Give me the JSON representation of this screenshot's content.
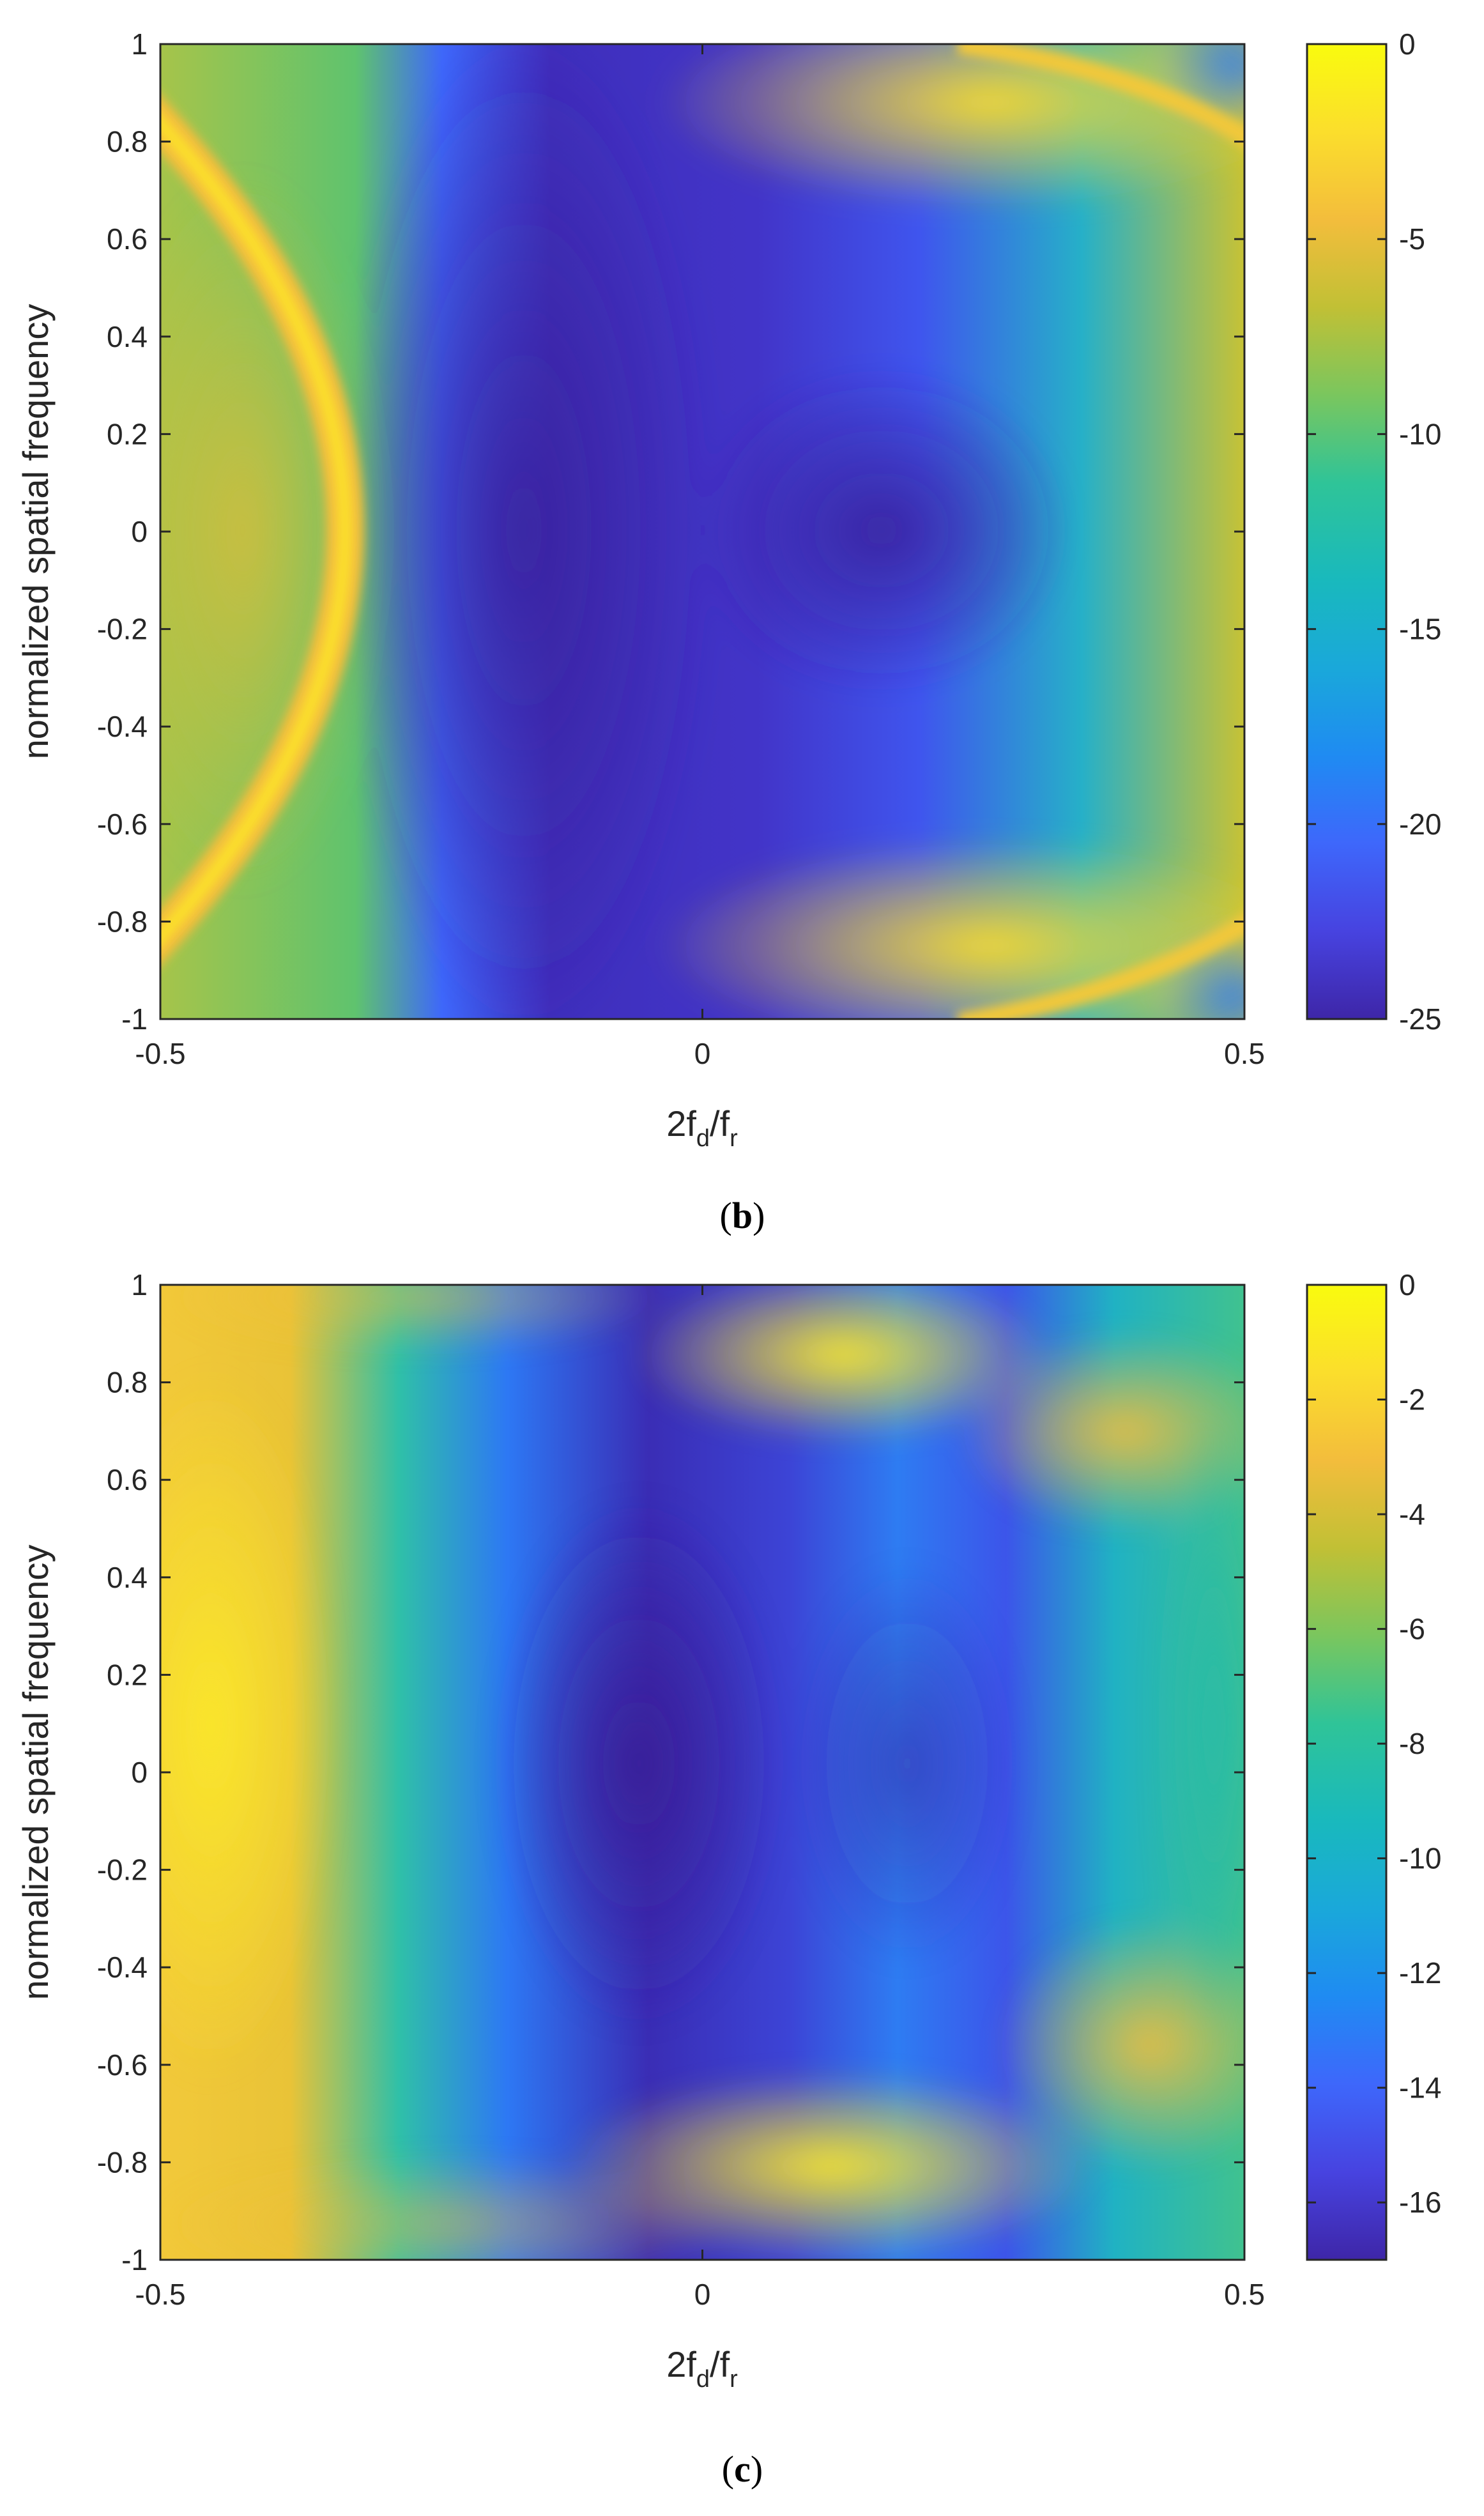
{
  "chart_data": [
    {
      "type": "heatmap",
      "panel_caption": "b",
      "xlabel": "2f",
      "xlabel_sub1": "d",
      "xlabel_mid": "/f",
      "xlabel_sub2": "r",
      "ylabel": "normalized spatial frequency",
      "xlim": [
        -0.5,
        0.5
      ],
      "ylim": [
        -1,
        1
      ],
      "xticks": [
        "-0.5",
        "0",
        "0.5"
      ],
      "yticks": [
        "1",
        "0.8",
        "0.6",
        "0.4",
        "0.2",
        "0",
        "-0.2",
        "-0.4",
        "-0.6",
        "-0.8",
        "-1"
      ],
      "colorbar": {
        "range": [
          -25,
          0
        ],
        "ticks": [
          "0",
          "-5",
          "-10",
          "-15",
          "-20",
          "-25"
        ]
      },
      "description_values": {
        "arc_peak_x_at_y0": -0.25,
        "low_region_center": [
          -0.05,
          0.0
        ],
        "low_value": -25
      }
    },
    {
      "type": "heatmap",
      "panel_caption": "c",
      "xlabel": "2f",
      "xlabel_sub1": "d",
      "xlabel_mid": "/f",
      "xlabel_sub2": "r",
      "ylabel": "normalized spatial frequency",
      "xlim": [
        -0.5,
        0.5
      ],
      "ylim": [
        -1,
        1
      ],
      "xticks": [
        "-0.5",
        "0",
        "0.5"
      ],
      "yticks": [
        "1",
        "0.8",
        "0.6",
        "0.4",
        "0.2",
        "0",
        "-0.2",
        "-0.4",
        "-0.6",
        "-0.8",
        "-1"
      ],
      "colorbar": {
        "range": [
          -17,
          0
        ],
        "ticks": [
          "0",
          "-2",
          "-4",
          "-6",
          "-8",
          "-10",
          "-12",
          "-14",
          "-16"
        ]
      },
      "description_values": {
        "low_region_center": [
          -0.1,
          -0.1
        ],
        "low_value": -17
      }
    }
  ],
  "colormap": [
    "#3e26a8",
    "#4743e0",
    "#3e67fb",
    "#1f8bf2",
    "#1aa8da",
    "#19b9bd",
    "#2fc498",
    "#7ac65e",
    "#c1c035",
    "#f3bd3c",
    "#fbde2c",
    "#f9fb0e"
  ]
}
